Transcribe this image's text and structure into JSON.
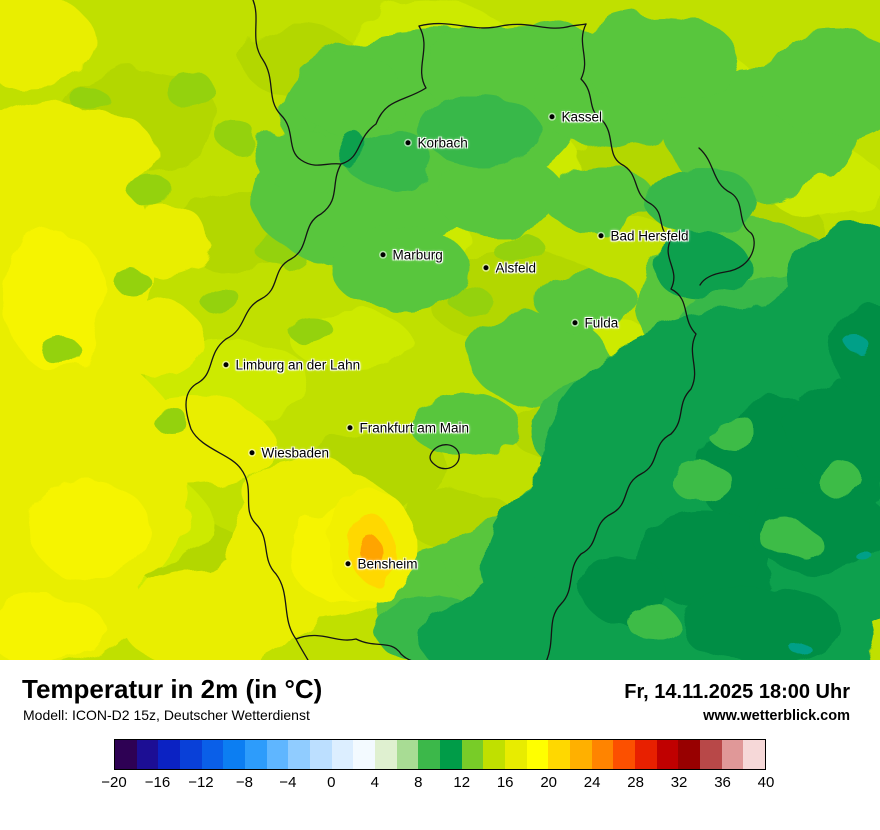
{
  "map": {
    "cities": [
      {
        "name": "Kassel"
      },
      {
        "name": "Korbach"
      },
      {
        "name": "Bad Hersfeld"
      },
      {
        "name": "Marburg"
      },
      {
        "name": "Alsfeld"
      },
      {
        "name": "Fulda"
      },
      {
        "name": "Limburg an der Lahn"
      },
      {
        "name": "Frankfurt am Main"
      },
      {
        "name": "Wiesbaden"
      },
      {
        "name": "Bensheim"
      }
    ],
    "color_key": {
      "base_yellow_green": "#c0e000",
      "yellow": "#e9ee00",
      "green": "#58c63e",
      "dark_green": "#0da04e",
      "darkest_green": "#008e44",
      "hotspot_orange": "#ffa400",
      "border_line": "#141414"
    }
  },
  "panel": {
    "title": "Temperatur in 2m (in °C)",
    "datetime": "Fr, 14.11.2025 18:00 Uhr",
    "model": "Modell: ICON-D2 15z, Deutscher Wetterdienst",
    "website": "www.wetterblick.com"
  },
  "legend": {
    "unit": "°C",
    "range_min": -20,
    "range_max": 40,
    "step_per_cell": 2,
    "ticks": [
      "−20",
      "−16",
      "−12",
      "−8",
      "−4",
      "0",
      "4",
      "8",
      "12",
      "16",
      "20",
      "24",
      "28",
      "32",
      "36",
      "40"
    ],
    "cell_colors": [
      "#2e0154",
      "#1c0e94",
      "#0b22c3",
      "#0940d8",
      "#0a5fe8",
      "#0c7ef2",
      "#2d9cfb",
      "#5fb6ff",
      "#90ccff",
      "#bcdfff",
      "#dceeff",
      "#f3faff",
      "#dff0d0",
      "#a8dc94",
      "#3cb84a",
      "#009c48",
      "#78cc28",
      "#c0e000",
      "#e8ec00",
      "#ffff00",
      "#ffd800",
      "#ffb000",
      "#ff8400",
      "#fc5000",
      "#e82000",
      "#c00000",
      "#980000",
      "#b84848",
      "#e09898",
      "#f6d8d8"
    ]
  }
}
